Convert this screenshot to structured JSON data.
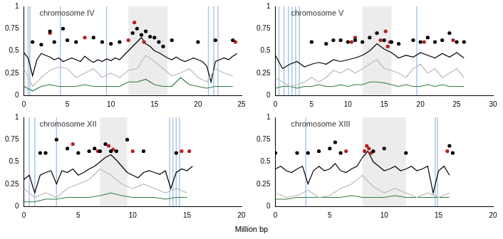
{
  "x_label": "Million bp",
  "chart_data": [
    {
      "type": "line",
      "title": "chromosome IV",
      "xlim": [
        0,
        25
      ],
      "xticks": [
        0,
        5,
        10,
        15,
        20,
        25
      ],
      "ylim": [
        0,
        1
      ],
      "yticks": [
        0,
        0.25,
        0.5,
        0.75,
        1
      ],
      "grid": false,
      "tick_labels": true,
      "shaded": [
        12,
        16.5
      ],
      "blue_lines": [
        0.5,
        0.7,
        4.2,
        9.5,
        21.2,
        21.8,
        22.3
      ],
      "series": [
        {
          "type": "line",
          "color": "#bbbbbb",
          "x": [
            0,
            1,
            2,
            3,
            4,
            5,
            6,
            7,
            8,
            9,
            10,
            11,
            12,
            13,
            14,
            15,
            16,
            17,
            18,
            19,
            20,
            21,
            22,
            23,
            24
          ],
          "values": [
            0.3,
            0.1,
            0.2,
            0.28,
            0.32,
            0.3,
            0.2,
            0.25,
            0.3,
            0.2,
            0.25,
            0.2,
            0.28,
            0.3,
            0.45,
            0.38,
            0.3,
            0.22,
            0.25,
            0.3,
            0.2,
            0.15,
            0.3,
            0.25,
            0.22
          ]
        },
        {
          "type": "line",
          "color": "#2e7d3e",
          "x": [
            0,
            1,
            2,
            3,
            4,
            5,
            6,
            7,
            8,
            9,
            10,
            11,
            12,
            13,
            14,
            15,
            16,
            17,
            18,
            19,
            20,
            21,
            22,
            23,
            24
          ],
          "values": [
            0.1,
            0.05,
            0.1,
            0.12,
            0.1,
            0.1,
            0.1,
            0.12,
            0.1,
            0.1,
            0.1,
            0.1,
            0.15,
            0.15,
            0.18,
            0.12,
            0.1,
            0.1,
            0.2,
            0.12,
            0.1,
            0.08,
            0.1,
            0.1,
            0.1
          ]
        },
        {
          "type": "line",
          "color": "#000000",
          "x": [
            0,
            0.5,
            1,
            1.5,
            2,
            2.5,
            3,
            3.5,
            4,
            4.5,
            5,
            5.5,
            6,
            6.5,
            7,
            7.5,
            8,
            8.5,
            9,
            9.5,
            10,
            10.5,
            11,
            11.5,
            12,
            12.5,
            13,
            13.5,
            14,
            14.5,
            15,
            15.5,
            16,
            16.5,
            17,
            17.5,
            18,
            18.5,
            19,
            19.5,
            20,
            20.5,
            21,
            21.5,
            22,
            22.5,
            23,
            23.5,
            24,
            24.5
          ],
          "values": [
            0.48,
            0.42,
            0.22,
            0.4,
            0.47,
            0.45,
            0.43,
            0.4,
            0.42,
            0.38,
            0.4,
            0.42,
            0.4,
            0.38,
            0.44,
            0.4,
            0.37,
            0.4,
            0.38,
            0.41,
            0.39,
            0.42,
            0.4,
            0.45,
            0.5,
            0.55,
            0.6,
            0.65,
            0.58,
            0.55,
            0.5,
            0.48,
            0.45,
            0.42,
            0.4,
            0.43,
            0.4,
            0.38,
            0.4,
            0.42,
            0.4,
            0.38,
            0.33,
            0.15,
            0.38,
            0.4,
            0.42,
            0.4,
            0.44,
            0.47
          ]
        },
        {
          "type": "scatter",
          "color": "#000000",
          "x": [
            1,
            2,
            3,
            3.5,
            4.5,
            5,
            6,
            8,
            9,
            10,
            11,
            12.5,
            13,
            13.5,
            14,
            14.5,
            15,
            15.5,
            16,
            17,
            20,
            22,
            24
          ],
          "values": [
            0.6,
            0.57,
            0.72,
            0.6,
            0.75,
            0.62,
            0.6,
            0.65,
            0.6,
            0.58,
            0.6,
            0.7,
            0.75,
            0.68,
            0.72,
            0.66,
            0.65,
            0.6,
            0.55,
            0.62,
            0.6,
            0.62,
            0.62
          ]
        },
        {
          "type": "scatter",
          "color": "#b22222",
          "x": [
            3,
            7,
            12,
            12.7,
            13.8,
            24.3
          ],
          "values": [
            0.7,
            0.65,
            0.62,
            0.82,
            0.6,
            0.6
          ]
        }
      ]
    },
    {
      "type": "line",
      "title": "chromosome V",
      "xlim": [
        0,
        30
      ],
      "xticks": [
        0,
        5,
        10,
        15,
        20,
        25,
        30
      ],
      "ylim": [
        0,
        1
      ],
      "yticks": [
        0,
        0.25,
        0.5,
        0.75,
        1
      ],
      "grid": false,
      "tick_labels": true,
      "shaded": [
        12,
        16
      ],
      "blue_lines": [
        0.5,
        1.2,
        1.8,
        2.3,
        2.8,
        3.3,
        19.5
      ],
      "series": [
        {
          "type": "line",
          "color": "#bbbbbb",
          "x": [
            0,
            1,
            2,
            3,
            4,
            5,
            6,
            7,
            8,
            9,
            10,
            11,
            12,
            13,
            14,
            15,
            16,
            17,
            18,
            19,
            20,
            21,
            22,
            23,
            24,
            25,
            26
          ],
          "values": [
            0.2,
            0.15,
            0.1,
            0.12,
            0.15,
            0.2,
            0.15,
            0.2,
            0.28,
            0.25,
            0.3,
            0.25,
            0.3,
            0.35,
            0.4,
            0.3,
            0.28,
            0.25,
            0.2,
            0.3,
            0.35,
            0.25,
            0.3,
            0.2,
            0.25,
            0.3,
            0.2
          ]
        },
        {
          "type": "line",
          "color": "#2e7d3e",
          "x": [
            0,
            1,
            2,
            3,
            4,
            5,
            6,
            7,
            8,
            9,
            10,
            11,
            12,
            13,
            14,
            15,
            16,
            17,
            18,
            19,
            20,
            21,
            22,
            23,
            24,
            25,
            26
          ],
          "values": [
            0.08,
            0.1,
            0.1,
            0.08,
            0.1,
            0.1,
            0.12,
            0.1,
            0.1,
            0.12,
            0.1,
            0.12,
            0.12,
            0.15,
            0.15,
            0.14,
            0.12,
            0.1,
            0.12,
            0.1,
            0.1,
            0.12,
            0.1,
            0.12,
            0.1,
            0.1,
            0.1
          ]
        },
        {
          "type": "line",
          "color": "#000000",
          "x": [
            0,
            1,
            2,
            3,
            4,
            5,
            6,
            7,
            8,
            9,
            10,
            11,
            12,
            13,
            14,
            15,
            16,
            17,
            18,
            19,
            20,
            21,
            22,
            23,
            24,
            25,
            26
          ],
          "values": [
            0.45,
            0.3,
            0.35,
            0.38,
            0.32,
            0.35,
            0.37,
            0.35,
            0.4,
            0.38,
            0.4,
            0.42,
            0.45,
            0.5,
            0.58,
            0.52,
            0.48,
            0.42,
            0.45,
            0.43,
            0.48,
            0.45,
            0.42,
            0.47,
            0.43,
            0.48,
            0.42
          ]
        },
        {
          "type": "scatter",
          "color": "#000000",
          "x": [
            5,
            7,
            8,
            9,
            10,
            11,
            12,
            13,
            14,
            15,
            16,
            17,
            19,
            20,
            21,
            22,
            23,
            24,
            25,
            26
          ],
          "values": [
            0.6,
            0.58,
            0.62,
            0.62,
            0.6,
            0.62,
            0.6,
            0.65,
            0.7,
            0.62,
            0.6,
            0.58,
            0.62,
            0.6,
            0.65,
            0.6,
            0.62,
            0.7,
            0.6,
            0.6
          ]
        },
        {
          "type": "scatter",
          "color": "#b22222",
          "x": [
            10.5,
            11,
            14.5,
            15.2,
            15.5,
            15.8,
            20.5,
            24.5
          ],
          "values": [
            0.6,
            0.65,
            0.62,
            0.72,
            0.55,
            0.6,
            0.6,
            0.62
          ]
        }
      ]
    },
    {
      "type": "line",
      "title": "chromosome XII",
      "xlim": [
        0,
        20
      ],
      "xticks": [
        0,
        5,
        10,
        15,
        20
      ],
      "ylim": [
        0,
        1
      ],
      "yticks": [
        0,
        0.25,
        0.5,
        0.75,
        1
      ],
      "grid": false,
      "tick_labels": true,
      "shaded": [
        7,
        9.5
      ],
      "blue_lines": [
        0.5,
        1,
        3,
        13.4,
        13.7,
        14,
        14.3
      ],
      "series": [
        {
          "type": "line",
          "color": "#bbbbbb",
          "x": [
            0,
            1,
            2,
            3,
            4,
            5,
            6,
            7,
            8,
            9,
            10,
            11,
            12,
            13,
            14,
            15
          ],
          "values": [
            0.2,
            0.1,
            0.15,
            0.1,
            0.2,
            0.25,
            0.3,
            0.42,
            0.35,
            0.25,
            0.2,
            0.25,
            0.2,
            0.15,
            0.2,
            0.15
          ]
        },
        {
          "type": "line",
          "color": "#2e7d3e",
          "x": [
            0,
            1,
            2,
            3,
            4,
            5,
            6,
            7,
            8,
            9,
            10,
            11,
            12,
            13,
            14,
            15
          ],
          "values": [
            0.05,
            0.05,
            0.08,
            0.08,
            0.1,
            0.1,
            0.1,
            0.12,
            0.15,
            0.12,
            0.1,
            0.1,
            0.1,
            0.08,
            0.1,
            0.1
          ]
        },
        {
          "type": "line",
          "color": "#000000",
          "x": [
            0,
            0.5,
            1,
            1.5,
            2,
            2.5,
            3,
            3.5,
            4,
            4.5,
            5,
            5.5,
            6,
            6.5,
            7,
            7.5,
            8,
            8.5,
            9,
            9.5,
            10,
            10.5,
            11,
            11.5,
            12,
            12.5,
            13,
            13.5,
            14,
            14.5,
            15,
            15.5
          ],
          "values": [
            0.3,
            0.35,
            0.15,
            0.35,
            0.38,
            0.4,
            0.25,
            0.4,
            0.38,
            0.42,
            0.35,
            0.38,
            0.42,
            0.45,
            0.5,
            0.55,
            0.58,
            0.52,
            0.45,
            0.38,
            0.35,
            0.32,
            0.38,
            0.4,
            0.38,
            0.36,
            0.4,
            0.2,
            0.38,
            0.42,
            0.4,
            0.45
          ]
        },
        {
          "type": "scatter",
          "color": "#000000",
          "x": [
            1.5,
            2,
            3,
            4,
            5,
            6,
            6.5,
            7,
            7.5,
            8,
            8.5,
            9.5,
            11,
            14
          ],
          "values": [
            0.6,
            0.6,
            0.75,
            0.65,
            0.6,
            0.62,
            0.65,
            0.62,
            0.7,
            0.62,
            0.62,
            0.75,
            0.62,
            0.6
          ]
        },
        {
          "type": "scatter",
          "color": "#b22222",
          "x": [
            4.5,
            6.8,
            7.8,
            8.2,
            10,
            14.5,
            15.2
          ],
          "values": [
            0.7,
            0.62,
            0.68,
            0.64,
            0.62,
            0.62,
            0.62
          ]
        }
      ]
    },
    {
      "type": "line",
      "title": "chromosome XIII",
      "xlim": [
        0,
        20
      ],
      "xticks": [
        0,
        5,
        10,
        15,
        20
      ],
      "ylim": [
        0,
        1
      ],
      "yticks": [
        0,
        0.25,
        0.5,
        0.75,
        1
      ],
      "grid": false,
      "tick_labels": true,
      "shaded": [
        8,
        12
      ],
      "blue_lines": [
        2.8,
        14.7,
        14.9
      ],
      "series": [
        {
          "type": "line",
          "color": "#bbbbbb",
          "x": [
            0,
            1,
            2,
            3,
            4,
            5,
            6,
            7,
            8,
            9,
            10,
            11,
            12,
            13,
            14,
            15,
            16
          ],
          "values": [
            0.15,
            0.1,
            0.12,
            0.18,
            0.1,
            0.12,
            0.2,
            0.25,
            0.35,
            0.22,
            0.15,
            0.2,
            0.15,
            0.1,
            0.15,
            0.1,
            0.15
          ]
        },
        {
          "type": "line",
          "color": "#2e7d3e",
          "x": [
            0,
            1,
            2,
            3,
            4,
            5,
            6,
            7,
            8,
            9,
            10,
            11,
            12,
            13,
            14,
            15,
            16
          ],
          "values": [
            0.08,
            0.08,
            0.1,
            0.1,
            0.1,
            0.1,
            0.1,
            0.12,
            0.1,
            0.1,
            0.1,
            0.12,
            0.1,
            0.1,
            0.1,
            0.1,
            0.1
          ]
        },
        {
          "type": "line",
          "color": "#000000",
          "x": [
            0,
            0.5,
            1,
            1.5,
            2,
            2.5,
            3,
            3.5,
            4,
            4.5,
            5,
            5.5,
            6,
            6.5,
            7,
            7.5,
            8,
            8.5,
            9,
            9.5,
            10,
            10.5,
            11,
            11.5,
            12,
            12.5,
            13,
            13.5,
            14,
            14.5,
            15,
            15.5,
            16
          ],
          "values": [
            0.42,
            0.45,
            0.4,
            0.38,
            0.42,
            0.45,
            0.25,
            0.4,
            0.45,
            0.4,
            0.42,
            0.48,
            0.4,
            0.38,
            0.42,
            0.45,
            0.55,
            0.62,
            0.5,
            0.45,
            0.4,
            0.42,
            0.45,
            0.4,
            0.42,
            0.45,
            0.4,
            0.42,
            0.45,
            0.15,
            0.4,
            0.45,
            0.35
          ]
        },
        {
          "type": "scatter",
          "color": "#000000",
          "x": [
            0,
            2,
            3,
            4,
            5,
            5.5,
            6,
            9,
            10,
            12,
            16,
            16.3
          ],
          "values": [
            0.6,
            0.6,
            0.6,
            0.62,
            0.65,
            0.72,
            0.6,
            0.62,
            0.65,
            0.6,
            0.68,
            0.6
          ]
        },
        {
          "type": "scatter",
          "color": "#b22222",
          "x": [
            8.2,
            8.4,
            8.6,
            8.8,
            6.5,
            15.8
          ],
          "values": [
            0.62,
            0.68,
            0.65,
            0.6,
            0.62,
            0.62
          ]
        }
      ]
    }
  ]
}
